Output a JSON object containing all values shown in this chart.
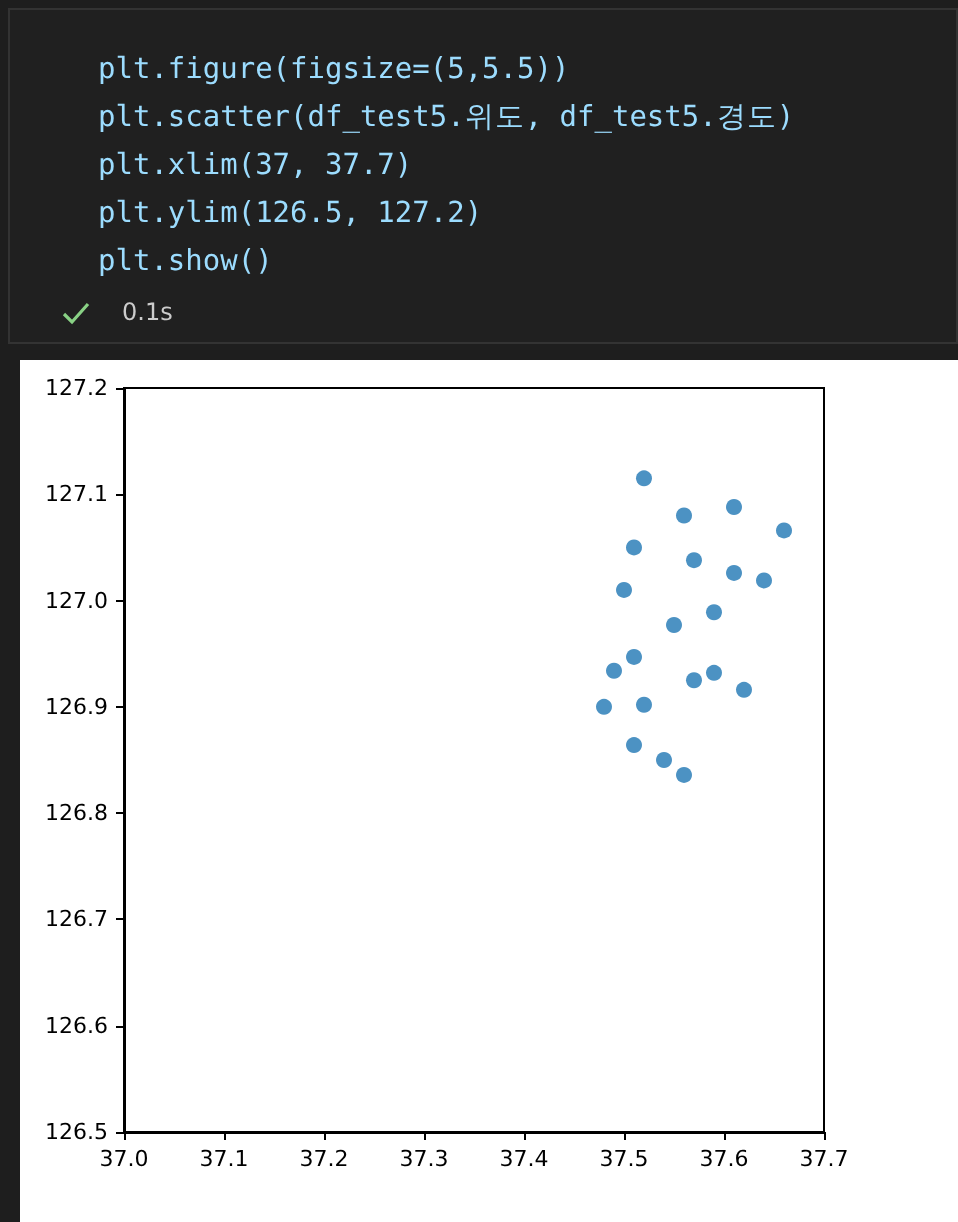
{
  "chart_data": {
    "type": "scatter",
    "annotations": [
      "plt.figure(figsize=(5,5.5))",
      "plt.scatter(df_test5.위도, df_test5.경도)",
      "plt.xlim(37, 37.7)",
      "plt.ylim(126.5, 127.2)",
      "plt.show()",
      "0.1s"
    ],
    "x": [
      37.52,
      37.56,
      37.61,
      37.66,
      37.51,
      37.57,
      37.61,
      37.64,
      37.5,
      37.59,
      37.55,
      37.51,
      37.49,
      37.57,
      37.59,
      37.62,
      37.48,
      37.52,
      37.51,
      37.54,
      37.56
    ],
    "values": [
      127.115,
      127.08,
      127.088,
      127.066,
      127.05,
      127.038,
      127.026,
      127.019,
      127.01,
      126.989,
      126.977,
      126.947,
      126.934,
      126.925,
      126.932,
      126.916,
      126.9,
      126.902,
      126.864,
      126.85,
      126.836
    ],
    "color": "#1f77b4",
    "marker": "circle",
    "grid": false,
    "xlim": [
      37.0,
      37.7
    ],
    "xticks": [
      {
        "value": 37.0,
        "label": "37.0"
      },
      37.1,
      37.2,
      37.3,
      37.4,
      37.5,
      37.6,
      37.7
    ],
    "ylim": [
      126.5,
      127.2
    ],
    "yticks": [
      {
        "value": 126.5,
        "label": "126.5"
      },
      126.6,
      126.7,
      126.8,
      126.9,
      {
        "value": 127.0,
        "label": "127.0"
      },
      127.1,
      127.2
    ]
  }
}
